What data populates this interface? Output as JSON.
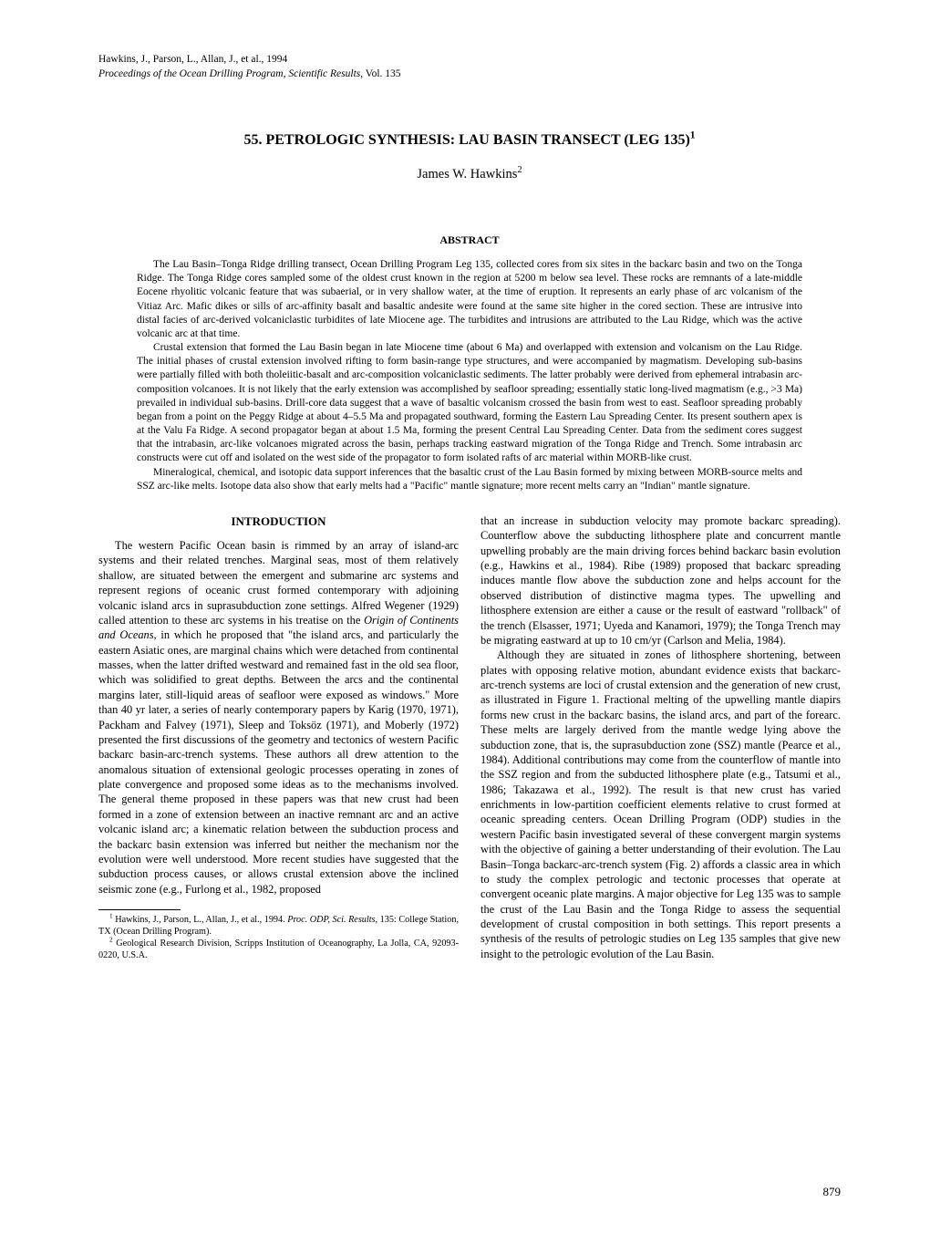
{
  "citation": {
    "line1": "Hawkins, J., Parson, L., Allan, J., et al., 1994",
    "line2_italic": "Proceedings of the Ocean Drilling Program, Scientific Results,",
    "line2_vol": " Vol. 135"
  },
  "chapter": {
    "title_main": "55. PETROLOGIC SYNTHESIS: LAU BASIN TRANSECT (LEG 135)",
    "title_sup": "1"
  },
  "author": {
    "name": "James W. Hawkins",
    "sup": "2"
  },
  "abstract": {
    "heading": "ABSTRACT",
    "p1": "The Lau Basin–Tonga Ridge drilling transect, Ocean Drilling Program Leg 135, collected cores from six sites in the backarc basin and two on the Tonga Ridge. The Tonga Ridge cores sampled some of the oldest crust known in the region at 5200 m below sea level. These rocks are remnants of a late-middle Eocene rhyolitic volcanic feature that was subaerial, or in very shallow water, at the time of eruption. It represents an early phase of arc volcanism of the Vitiaz Arc. Mafic dikes or sills of arc-affinity basalt and basaltic andesite were found at the same site higher in the cored section. These are intrusive into distal facies of arc-derived volcaniclastic turbidites of late Miocene age. The turbidites and intrusions are attributed to the Lau Ridge, which was the active volcanic arc at that time.",
    "p2": "Crustal extension that formed the Lau Basin began in late Miocene time (about 6 Ma) and overlapped with extension and volcanism on the Lau Ridge. The initial phases of crustal extension involved rifting to form basin-range type structures, and were accompanied by magmatism. Developing sub-basins were partially filled with both tholeiitic-basalt and arc-composition volcaniclastic sediments. The latter probably were derived from ephemeral intrabasin arc-composition volcanoes. It is not likely that the early extension was accomplished by seafloor spreading; essentially static long-lived magmatism (e.g., >3 Ma) prevailed in individual sub-basins. Drill-core data suggest that a wave of basaltic volcanism crossed the basin from west to east. Seafloor spreading probably began from a point on the Peggy Ridge at about 4–5.5 Ma and propagated southward, forming the Eastern Lau Spreading Center. Its present southern apex is at the Valu Fa Ridge. A second propagator began at about 1.5 Ma, forming the present Central Lau Spreading Center. Data from the sediment cores suggest that the intrabasin, arc-like volcanoes migrated across the basin, perhaps tracking eastward migration of the Tonga Ridge and Trench. Some intrabasin arc constructs were cut off and isolated on the west side of the propagator to form isolated rafts of arc material within MORB-like crust.",
    "p3": "Mineralogical, chemical, and isotopic data support inferences that the basaltic crust of the Lau Basin formed by mixing between MORB-source melts and SSZ arc-like melts. Isotope data also show that early melts had a \"Pacific\" mantle signature; more recent melts carry an \"Indian\" mantle signature."
  },
  "intro": {
    "heading": "INTRODUCTION",
    "left_p1a": "The western Pacific Ocean basin is rimmed by an array of island-arc systems and their related trenches. Marginal seas, most of them relatively shallow, are situated between the emergent and submarine arc systems and represent regions of oceanic crust formed contemporary with adjoining volcanic island arcs in suprasubduction zone settings. Alfred Wegener (1929) called attention to these arc systems in his treatise on the ",
    "left_p1_italic": "Origin of Continents and Oceans,",
    "left_p1b": " in which he proposed that \"the island arcs, and particularly the eastern Asiatic ones, are marginal chains which were detached from continental masses, when the latter drifted westward and remained fast in the old sea floor, which was solidified to great depths. Between the arcs and the continental margins later, still-liquid areas of seafloor were exposed as windows.\" More than 40 yr later, a series of nearly contemporary papers by Karig (1970, 1971), Packham and Falvey (1971), Sleep and Toksöz (1971), and Moberly (1972) presented the first discussions of the geometry and tectonics of western Pacific backarc basin-arc-trench systems. These authors all drew attention to the anomalous situation of extensional geologic processes operating in zones of plate convergence and proposed some ideas as to the mechanisms involved. The general theme proposed in these papers was that new crust had been formed in a zone of extension between an inactive remnant arc and an active volcanic island arc; a kinematic relation between the subduction process and the backarc basin extension was inferred but neither the mechanism nor the evolution were well understood. More recent studies have suggested that the subduction process causes, or allows crustal extension above the inclined seismic zone (e.g., Furlong et al., 1982, proposed",
    "right_p1": "that an increase in subduction velocity may promote backarc spreading). Counterflow above the subducting lithosphere plate and concurrent mantle upwelling probably are the main driving forces behind backarc basin evolution (e.g., Hawkins et al., 1984). Ribe (1989) proposed that backarc spreading induces mantle flow above the subduction zone and helps account for the observed distribution of distinctive magma types. The upwelling and lithosphere extension are either a cause or the result of eastward \"rollback\" of the trench (Elsasser, 1971; Uyeda and Kanamori, 1979); the Tonga Trench may be migrating eastward at up to 10 cm/yr (Carlson and Melia, 1984).",
    "right_p2": "Although they are situated in zones of lithosphere shortening, between plates with opposing relative motion, abundant evidence exists that backarc-arc-trench systems are loci of crustal extension and the generation of new crust, as illustrated in Figure 1. Fractional melting of the upwelling mantle diapirs forms new crust in the backarc basins, the island arcs, and part of the forearc. These melts are largely derived from the mantle wedge lying above the subduction zone, that is, the suprasubduction zone (SSZ) mantle (Pearce et al., 1984). Additional contributions may come from the counterflow of mantle into the SSZ region and from the subducted lithosphere plate (e.g., Tatsumi et al., 1986; Takazawa et al., 1992). The result is that new crust has varied enrichments in low-partition coefficient elements relative to crust formed at oceanic spreading centers. Ocean Drilling Program (ODP) studies in the western Pacific basin investigated several of these convergent margin systems with the objective of gaining a better understanding of their evolution. The Lau Basin–Tonga backarc-arc-trench system (Fig. 2) affords a classic area in which to study the complex petrologic and tectonic processes that operate at convergent oceanic plate margins. A major objective for Leg 135 was to sample the crust of the Lau Basin and the Tonga Ridge to assess the sequential development of crustal composition in both settings. This report presents a synthesis of the results of petrologic studies on Leg 135 samples that give new insight to the petrologic evolution of the Lau Basin."
  },
  "footnotes": {
    "fn1_sup": "1",
    "fn1a": " Hawkins, J., Parson, L., Allan, J., et al., 1994. ",
    "fn1_italic": "Proc. ODP, Sci. Results,",
    "fn1b": " 135: College Station, TX (Ocean Drilling Program).",
    "fn2_sup": "2",
    "fn2": " Geological Research Division, Scripps Institution of Oceanography, La Jolla, CA, 92093-0220, U.S.A."
  },
  "page_number": "879"
}
